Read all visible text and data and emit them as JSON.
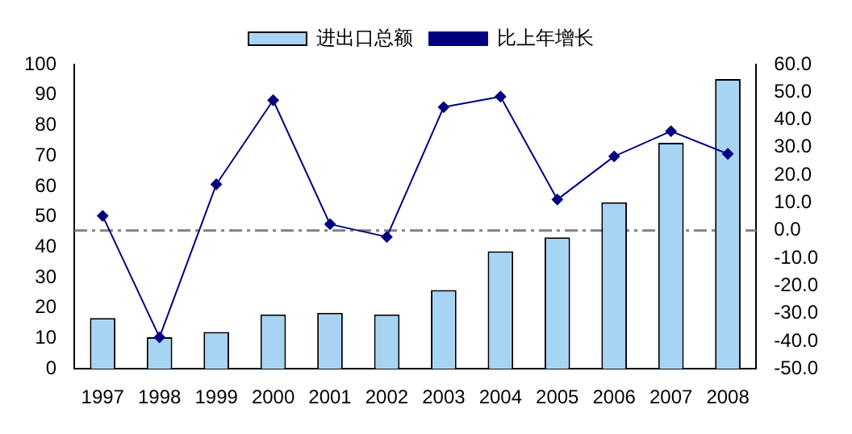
{
  "chart_data": {
    "type": "bar",
    "categories": [
      "1997",
      "1998",
      "1999",
      "2000",
      "2001",
      "2002",
      "2003",
      "2004",
      "2005",
      "2006",
      "2007",
      "2008"
    ],
    "series": [
      {
        "name": "进出口总额",
        "color": "#a8d4f4",
        "values": [
          16.7,
          10.4,
          12.1,
          17.9,
          18.4,
          17.9,
          25.9,
          38.6,
          43.2,
          54.7,
          74.3,
          95.2
        ]
      },
      {
        "name": "比上年增长",
        "type": "line",
        "axis": "y2",
        "color": "#000080",
        "marker": "diamond",
        "values": [
          5.3,
          -38.6,
          16.7,
          47.1,
          2.3,
          -2.3,
          44.6,
          48.4,
          11.2,
          26.8,
          35.9,
          27.7
        ]
      }
    ],
    "ylim": [
      0,
      100
    ],
    "yticks": [
      0,
      10,
      20,
      30,
      40,
      50,
      60,
      70,
      80,
      90,
      100
    ],
    "y2lim": [
      -50,
      60
    ],
    "y2ticks": [
      {
        "value": -50,
        "label": "-50.0"
      },
      {
        "value": -40,
        "label": "-40.0"
      },
      {
        "value": -30,
        "label": "-30.0"
      },
      {
        "value": -20,
        "label": "-20.0"
      },
      {
        "value": -10,
        "label": "-10.0"
      },
      {
        "value": 0,
        "label": "0.0"
      },
      {
        "value": 10,
        "label": "10.0"
      },
      {
        "value": 20,
        "label": "20.0"
      },
      {
        "value": 30,
        "label": "30.0"
      },
      {
        "value": 40,
        "label": "40.0"
      },
      {
        "value": 50,
        "label": "50.0"
      },
      {
        "value": 60,
        "label": "60.0"
      }
    ],
    "ref_lines": [
      {
        "axis": "y2",
        "value": 0,
        "color": "#808080",
        "line_style": "dashed"
      }
    ],
    "legend": "top",
    "grid": false
  }
}
